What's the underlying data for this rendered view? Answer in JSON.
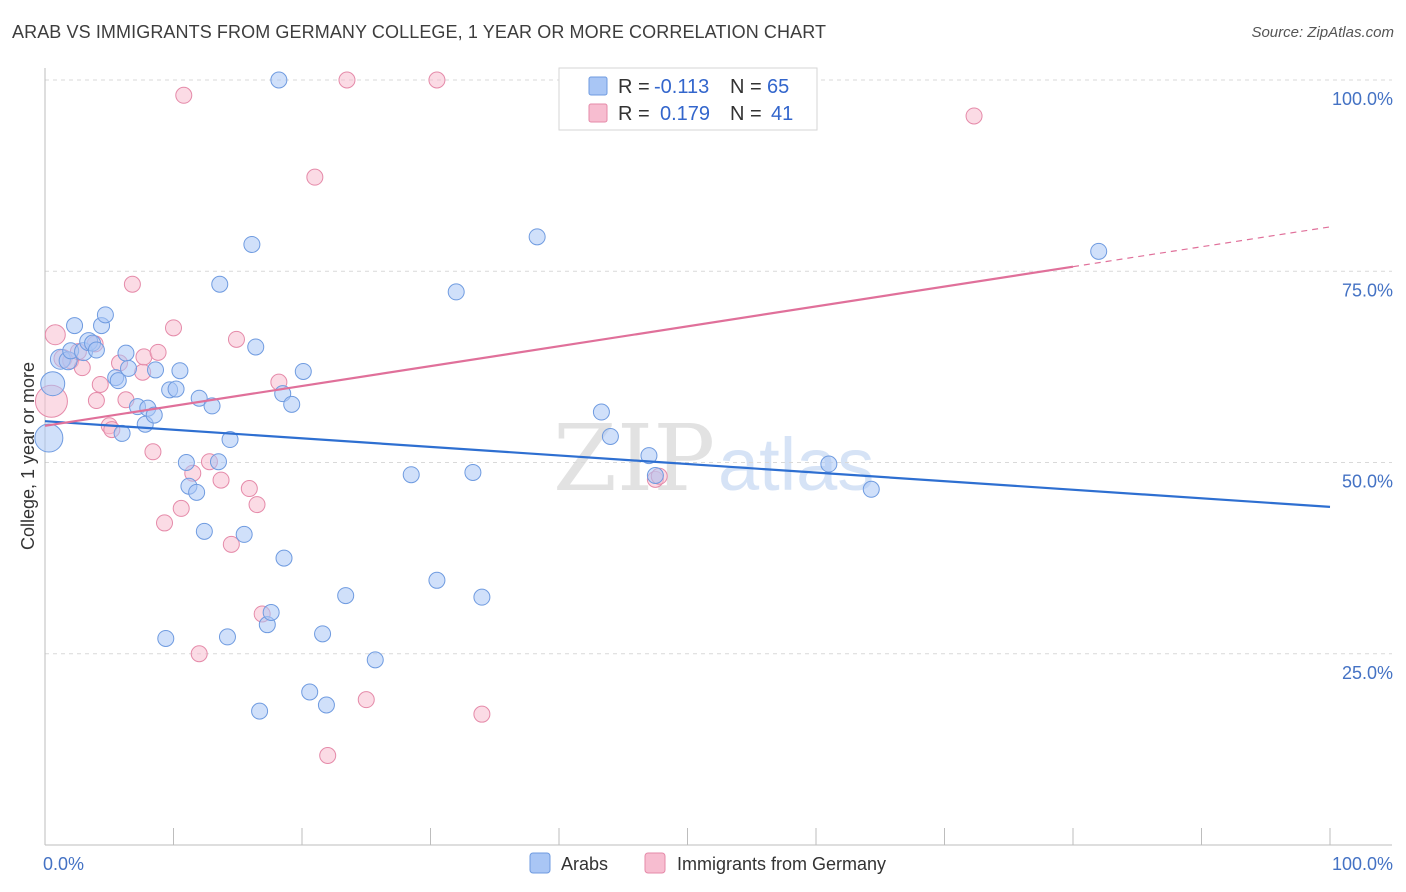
{
  "title": "ARAB VS IMMIGRANTS FROM GERMANY COLLEGE, 1 YEAR OR MORE CORRELATION CHART",
  "source": "Source: ZipAtlas.com",
  "watermark": {
    "zip": "ZIP",
    "atlas": "atlas"
  },
  "legend": {
    "rows": [
      {
        "r_label": "R =",
        "r_value": "-0.113",
        "n_label": "N =",
        "n_value": "65",
        "color": "#a9c6f5",
        "stroke": "#6f9be0"
      },
      {
        "r_label": "R =",
        "r_value": "0.179",
        "n_label": "N =",
        "n_value": "41",
        "color": "#f7bdd0",
        "stroke": "#e58aa9"
      }
    ]
  },
  "bottom_legend": [
    {
      "label": "Arabs",
      "color": "#a9c6f5",
      "stroke": "#6f9be0"
    },
    {
      "label": "Immigrants from Germany",
      "color": "#f7bdd0",
      "stroke": "#e58aa9"
    }
  ],
  "chart_data": {
    "type": "scatter",
    "xlabel": "",
    "ylabel": "College, 1 year or more",
    "xlim": [
      0,
      100
    ],
    "ylim": [
      0,
      100
    ],
    "x_tick_labels": [
      "0.0%",
      "100.0%"
    ],
    "y_ticks": [
      25,
      50,
      75,
      100
    ],
    "y_tick_labels": [
      "25.0%",
      "50.0%",
      "75.0%",
      "100.0%"
    ],
    "grid": true,
    "series": [
      {
        "name": "Arabs",
        "color": "#a9c6f5",
        "stroke": "#6f9be0",
        "line_color": "#2e6fd1",
        "trend": {
          "x": [
            0,
            100
          ],
          "y": [
            55.4,
            44.2
          ]
        },
        "points": [
          [
            0.3,
            53.2,
            14
          ],
          [
            0.6,
            60.3,
            12
          ],
          [
            1.2,
            63.5,
            10
          ],
          [
            1.8,
            63.3,
            9
          ],
          [
            2.0,
            64.6,
            8
          ],
          [
            2.3,
            67.9,
            8
          ],
          [
            3.0,
            64.5,
            9
          ],
          [
            3.4,
            65.8,
            9
          ],
          [
            3.7,
            65.6,
            8
          ],
          [
            4.0,
            64.7,
            8
          ],
          [
            4.4,
            67.9,
            8
          ],
          [
            4.7,
            69.3,
            8
          ],
          [
            5.5,
            61.1,
            8
          ],
          [
            5.7,
            60.7,
            8
          ],
          [
            6.0,
            53.8,
            8
          ],
          [
            6.3,
            64.3,
            8
          ],
          [
            6.5,
            62.3,
            8
          ],
          [
            7.2,
            57.3,
            8
          ],
          [
            7.8,
            55.0,
            8
          ],
          [
            8.0,
            57.1,
            8
          ],
          [
            8.5,
            56.2,
            8
          ],
          [
            8.6,
            62.1,
            8
          ],
          [
            9.4,
            27.0,
            8
          ],
          [
            9.7,
            59.5,
            8
          ],
          [
            10.2,
            59.6,
            8
          ],
          [
            10.5,
            62.0,
            8
          ],
          [
            11.0,
            50.0,
            8
          ],
          [
            11.2,
            46.9,
            8
          ],
          [
            11.8,
            46.1,
            8
          ],
          [
            12.0,
            58.4,
            8
          ],
          [
            12.4,
            41.0,
            8
          ],
          [
            13.0,
            57.4,
            8
          ],
          [
            13.5,
            50.1,
            8
          ],
          [
            13.6,
            73.3,
            8
          ],
          [
            14.2,
            27.2,
            8
          ],
          [
            14.4,
            53.0,
            8
          ],
          [
            15.5,
            40.6,
            8
          ],
          [
            16.1,
            78.5,
            8
          ],
          [
            16.4,
            65.1,
            8
          ],
          [
            16.7,
            17.5,
            8
          ],
          [
            17.3,
            28.8,
            8
          ],
          [
            17.6,
            30.4,
            8
          ],
          [
            18.2,
            100.0,
            8
          ],
          [
            18.5,
            59.0,
            8
          ],
          [
            18.6,
            37.5,
            8
          ],
          [
            19.2,
            57.6,
            8
          ],
          [
            20.1,
            61.9,
            8
          ],
          [
            20.6,
            20.0,
            8
          ],
          [
            21.6,
            27.6,
            8
          ],
          [
            21.9,
            18.3,
            8
          ],
          [
            23.4,
            32.6,
            8
          ],
          [
            25.7,
            24.2,
            8
          ],
          [
            28.5,
            48.4,
            8
          ],
          [
            30.5,
            34.6,
            8
          ],
          [
            32.0,
            72.3,
            8
          ],
          [
            33.3,
            48.7,
            8
          ],
          [
            34.0,
            32.4,
            8
          ],
          [
            38.3,
            79.5,
            8
          ],
          [
            43.3,
            56.6,
            8
          ],
          [
            44.0,
            53.4,
            8
          ],
          [
            47.0,
            50.9,
            8
          ],
          [
            47.5,
            48.3,
            8
          ],
          [
            61.0,
            49.8,
            8
          ],
          [
            64.3,
            46.5,
            8
          ],
          [
            82.0,
            77.6,
            8
          ]
        ]
      },
      {
        "name": "Immigrants from Germany",
        "color": "#f7bdd0",
        "stroke": "#e58aa9",
        "line_color": "#e0709a",
        "trend": {
          "x": [
            0,
            80
          ],
          "y": [
            54.8,
            75.6
          ]
        },
        "trend_dashed": {
          "x": [
            80,
            100
          ],
          "y": [
            75.6,
            80.8
          ]
        },
        "points": [
          [
            0.5,
            58.0,
            16
          ],
          [
            0.8,
            66.7,
            10
          ],
          [
            1.4,
            63.6,
            9
          ],
          [
            2.0,
            63.3,
            8
          ],
          [
            2.6,
            64.5,
            8
          ],
          [
            2.9,
            62.4,
            8
          ],
          [
            3.9,
            65.5,
            8
          ],
          [
            4.0,
            58.1,
            8
          ],
          [
            4.3,
            60.2,
            8
          ],
          [
            5.0,
            54.8,
            8
          ],
          [
            5.2,
            54.3,
            8
          ],
          [
            5.8,
            63.0,
            8
          ],
          [
            6.3,
            58.2,
            8
          ],
          [
            6.8,
            73.3,
            8
          ],
          [
            7.6,
            61.8,
            8
          ],
          [
            7.7,
            63.8,
            8
          ],
          [
            8.4,
            51.4,
            8
          ],
          [
            8.8,
            64.4,
            8
          ],
          [
            9.3,
            42.1,
            8
          ],
          [
            10.0,
            67.6,
            8
          ],
          [
            10.6,
            44.0,
            8
          ],
          [
            10.8,
            98.0,
            8
          ],
          [
            11.5,
            48.6,
            8
          ],
          [
            12.0,
            25.0,
            8
          ],
          [
            12.8,
            50.1,
            8
          ],
          [
            13.7,
            47.7,
            8
          ],
          [
            14.5,
            39.3,
            8
          ],
          [
            14.9,
            66.1,
            8
          ],
          [
            15.9,
            46.6,
            8
          ],
          [
            16.5,
            44.5,
            8
          ],
          [
            16.9,
            30.2,
            8
          ],
          [
            18.2,
            60.5,
            8
          ],
          [
            21.0,
            87.3,
            8
          ],
          [
            22.0,
            11.7,
            8
          ],
          [
            23.5,
            100.0,
            8
          ],
          [
            25.0,
            19.0,
            8
          ],
          [
            30.5,
            100.0,
            8
          ],
          [
            34.0,
            17.1,
            8
          ],
          [
            47.5,
            47.8,
            8
          ],
          [
            72.3,
            95.3,
            8
          ],
          [
            47.8,
            48.2,
            8
          ]
        ]
      }
    ]
  }
}
